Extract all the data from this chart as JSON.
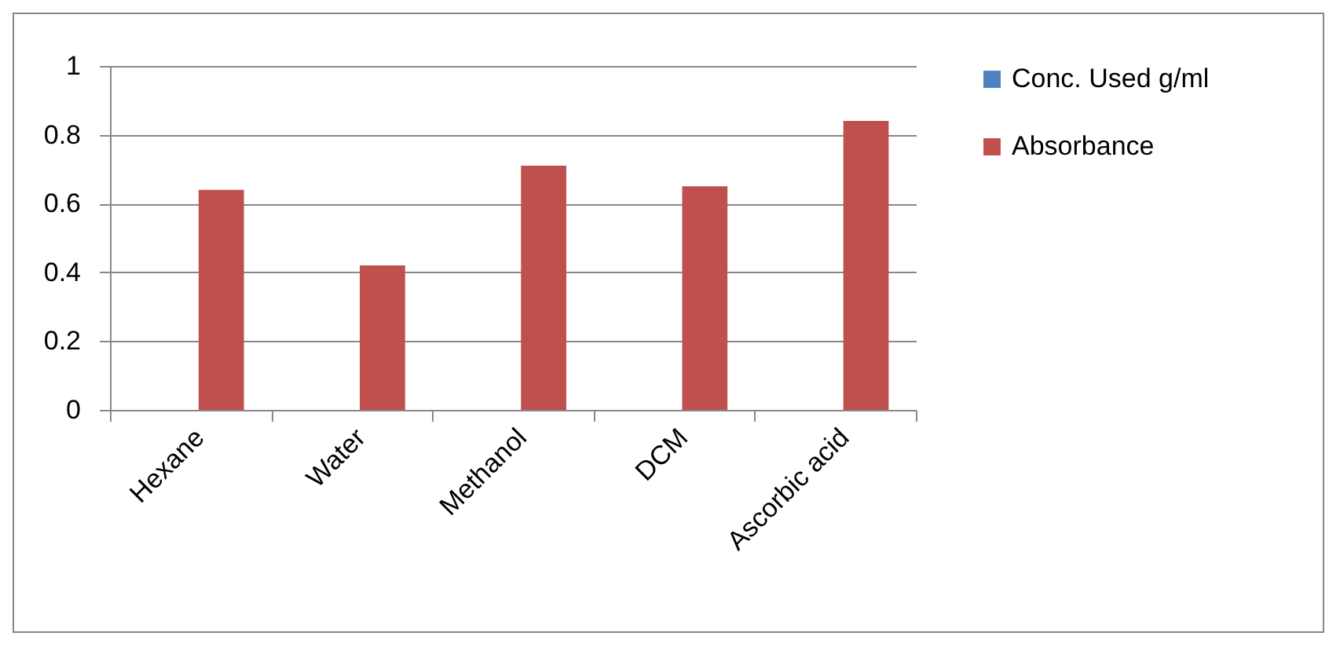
{
  "chart_data": {
    "type": "bar",
    "categories": [
      "Hexane",
      "Water",
      "Methanol",
      "DCM",
      "Ascorbic acid"
    ],
    "series": [
      {
        "name": "Conc. Used g/ml",
        "color": "#4f81bd",
        "values": [
          0,
          0,
          0,
          0,
          0
        ]
      },
      {
        "name": "Absorbance",
        "color": "#c0504d",
        "values": [
          0.64,
          0.42,
          0.71,
          0.65,
          0.84
        ]
      }
    ],
    "ylim": [
      0,
      1
    ],
    "yticks": [
      0,
      0.2,
      0.4,
      0.6,
      0.8,
      1
    ],
    "grid": "y",
    "legend": "right"
  }
}
